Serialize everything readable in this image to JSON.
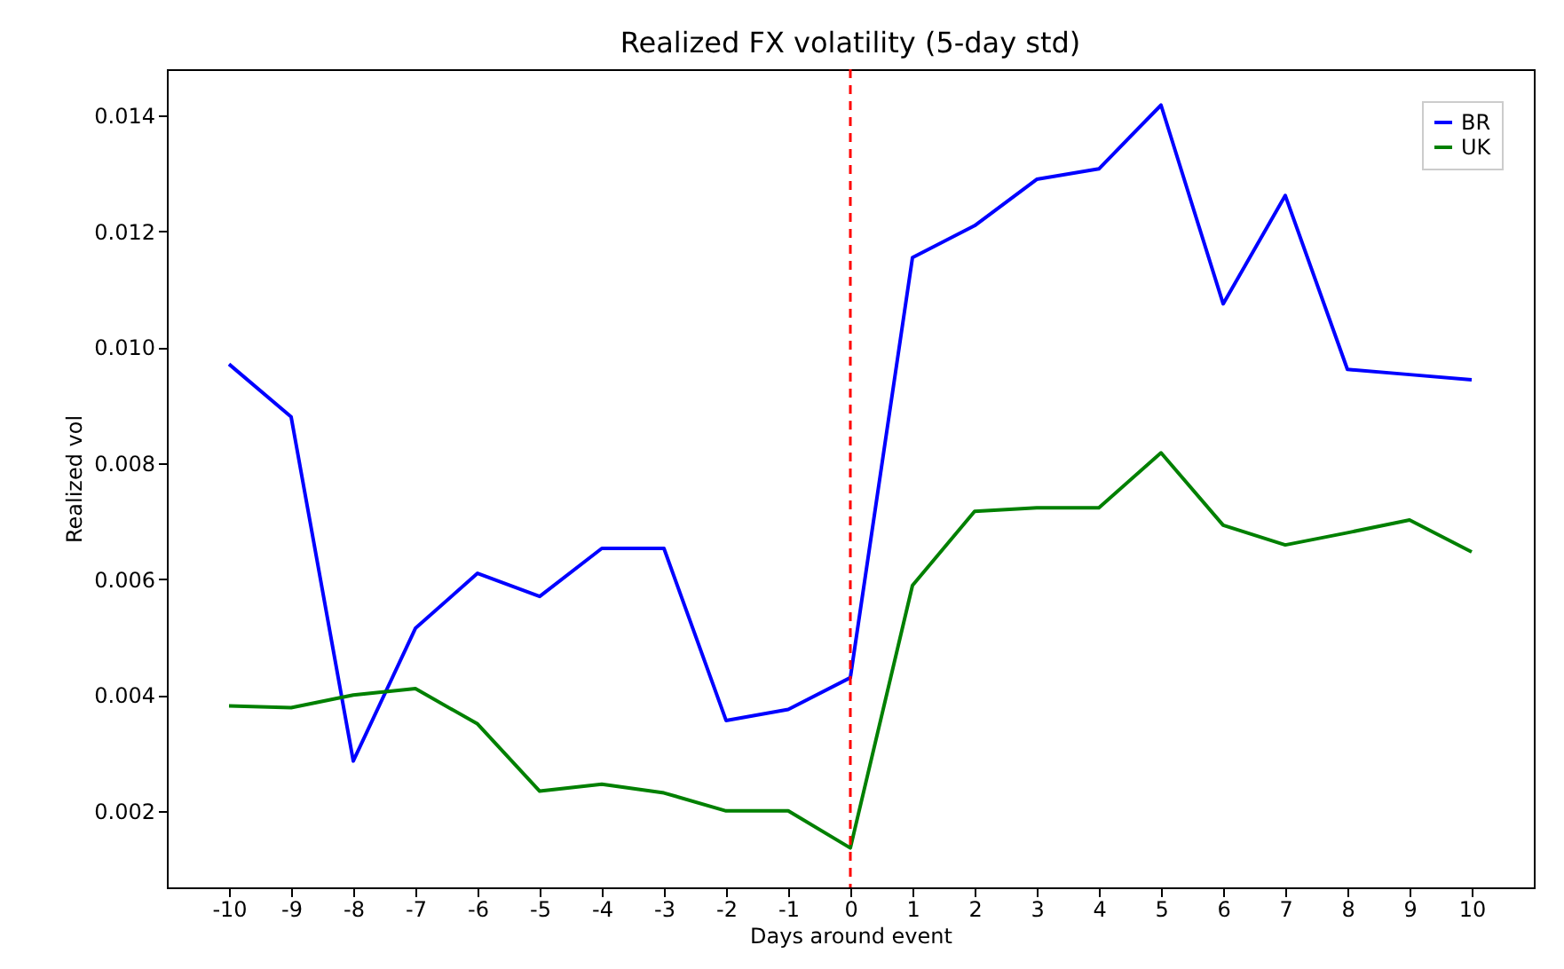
{
  "chart_data": {
    "type": "line",
    "title": "Realized FX volatility (5-day std)",
    "xlabel": "Days around event",
    "ylabel": "Realized vol",
    "x": [
      -10,
      -9,
      -8,
      -7,
      -6,
      -5,
      -4,
      -3,
      -2,
      -1,
      0,
      1,
      2,
      3,
      4,
      5,
      6,
      7,
      8,
      9,
      10
    ],
    "series": [
      {
        "name": "BR",
        "color": "#0000ff",
        "values": [
          0.00971,
          0.0088,
          0.00286,
          0.00515,
          0.0061,
          0.0057,
          0.00653,
          0.00653,
          0.00356,
          0.00375,
          0.0043,
          0.01155,
          0.0121,
          0.0129,
          0.01308,
          0.01418,
          0.01075,
          0.01262,
          0.00962,
          0.00953,
          0.00944
        ]
      },
      {
        "name": "UK",
        "color": "#008000",
        "values": [
          0.00381,
          0.00378,
          0.004,
          0.00411,
          0.0035,
          0.00234,
          0.00246,
          0.00231,
          0.002,
          0.002,
          0.00136,
          0.00589,
          0.00717,
          0.00723,
          0.00723,
          0.00818,
          0.00693,
          0.00659,
          0.0068,
          0.00702,
          0.00647
        ]
      }
    ],
    "xlim": [
      -11,
      11
    ],
    "xticks": [
      -10,
      -9,
      -8,
      -7,
      -6,
      -5,
      -4,
      -3,
      -2,
      -1,
      0,
      1,
      2,
      3,
      4,
      5,
      6,
      7,
      8,
      9,
      10
    ],
    "ylim": [
      0.00068,
      0.0148
    ],
    "yticks": [
      {
        "value": 0.002,
        "label": "0.002"
      },
      {
        "value": 0.004,
        "label": "0.004"
      },
      {
        "value": 0.006,
        "label": "0.006"
      },
      {
        "value": 0.008,
        "label": "0.008"
      },
      {
        "value": 0.01,
        "label": "0.010"
      },
      {
        "value": 0.012,
        "label": "0.012"
      },
      {
        "value": 0.014,
        "label": "0.014"
      }
    ],
    "ref_lines": [
      {
        "axis": "x",
        "value": 0,
        "color": "#ff0000",
        "line_style": "dashed"
      }
    ],
    "legend": "top right",
    "grid": false
  }
}
